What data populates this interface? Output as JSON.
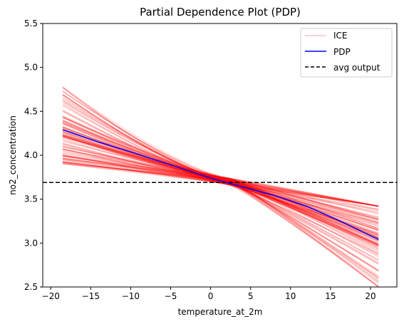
{
  "chart_data": {
    "type": "line",
    "title": "Partial Dependence Plot (PDP)",
    "xlabel": "temperature_at_2m",
    "ylabel": "no2_concentration",
    "xlim": [
      -21,
      23.3
    ],
    "ylim": [
      2.5,
      5.5
    ],
    "x_ticks": [
      -20,
      -15,
      -10,
      -5,
      0,
      5,
      10,
      15,
      20
    ],
    "y_ticks": [
      2.5,
      3.0,
      3.5,
      4.0,
      4.5,
      5.0,
      5.5
    ],
    "x_tick_labels": [
      "−20",
      "−15",
      "−10",
      "−5",
      "0",
      "5",
      "10",
      "15",
      "20"
    ],
    "y_tick_labels": [
      "2.5",
      "3.0",
      "3.5",
      "4.0",
      "4.5",
      "5.0",
      "5.5"
    ],
    "grid": false,
    "legend_position": "top-right",
    "legend": [
      "ICE",
      "PDP",
      "avg output"
    ],
    "colors": {
      "ice": "#ff0000",
      "pdp": "#0000ff",
      "avg": "#000000",
      "ice_legend": "#ffc0cb"
    },
    "pdp": {
      "name": "PDP",
      "x": [
        -18.5,
        -14,
        -9,
        -4,
        0,
        4,
        8,
        12,
        16,
        21
      ],
      "y": [
        4.29,
        4.15,
        4.01,
        3.86,
        3.74,
        3.64,
        3.54,
        3.42,
        3.26,
        3.04
      ]
    },
    "avg_output": {
      "name": "avg output",
      "y": 3.69
    },
    "ice": {
      "name": "ICE",
      "x_range": [
        -18.5,
        21
      ],
      "crossing_x": 2.5,
      "crossing_y": 3.7,
      "count": 110,
      "start_range": [
        3.9,
        4.82
      ],
      "end_range": [
        2.5,
        3.42
      ]
    }
  }
}
